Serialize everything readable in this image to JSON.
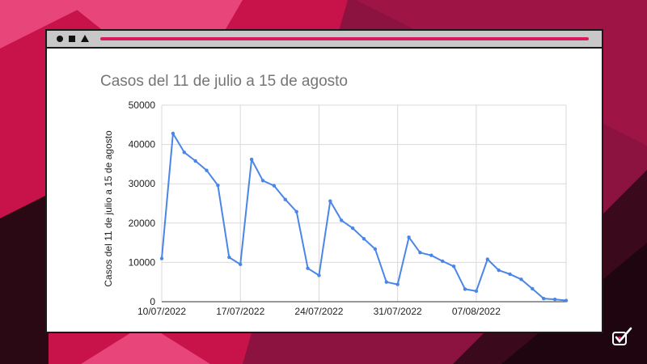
{
  "colors": {
    "accent": "#d81b60",
    "line": "#4a86e8",
    "title": "#757575",
    "grid": "#d9d9d9"
  },
  "window": {
    "controls": [
      "circle-icon",
      "square-icon",
      "triangle-icon"
    ]
  },
  "chart_data": {
    "type": "line",
    "title": "Casos del 11 de julio a 15 de agosto",
    "ylabel": "Casos del 11 de julio a 15 de agosto",
    "xlabel": "",
    "ylim": [
      0,
      50000
    ],
    "yticks": [
      0,
      10000,
      20000,
      30000,
      40000,
      50000
    ],
    "x_start": "10/07/2022",
    "xticks": [
      "10/07/2022",
      "17/07/2022",
      "24/07/2022",
      "31/07/2022",
      "07/08/2022"
    ],
    "grid": true,
    "legend": "none",
    "series": [
      {
        "x": [
          "10/07/2022",
          "11/07/2022",
          "12/07/2022",
          "13/07/2022",
          "14/07/2022",
          "15/07/2022",
          "16/07/2022",
          "17/07/2022",
          "18/07/2022",
          "19/07/2022",
          "20/07/2022",
          "21/07/2022",
          "22/07/2022",
          "23/07/2022",
          "24/07/2022",
          "25/07/2022",
          "26/07/2022",
          "27/07/2022",
          "28/07/2022",
          "29/07/2022",
          "30/07/2022",
          "31/07/2022",
          "01/08/2022",
          "02/08/2022",
          "03/08/2022",
          "04/08/2022",
          "05/08/2022",
          "06/08/2022",
          "07/08/2022",
          "08/08/2022",
          "09/08/2022",
          "10/08/2022",
          "11/08/2022",
          "12/08/2022",
          "13/08/2022",
          "14/08/2022",
          "15/08/2022"
        ],
        "values": [
          11000,
          42800,
          38000,
          35800,
          33400,
          29600,
          11300,
          9500,
          36200,
          30800,
          29500,
          26000,
          22900,
          8500,
          6700,
          25600,
          20700,
          18700,
          16000,
          13400,
          5000,
          4400,
          16400,
          12500,
          11800,
          10300,
          9000,
          3200,
          2700,
          10800,
          8000,
          7000,
          5700,
          3300,
          800,
          600,
          300
        ]
      }
    ]
  }
}
